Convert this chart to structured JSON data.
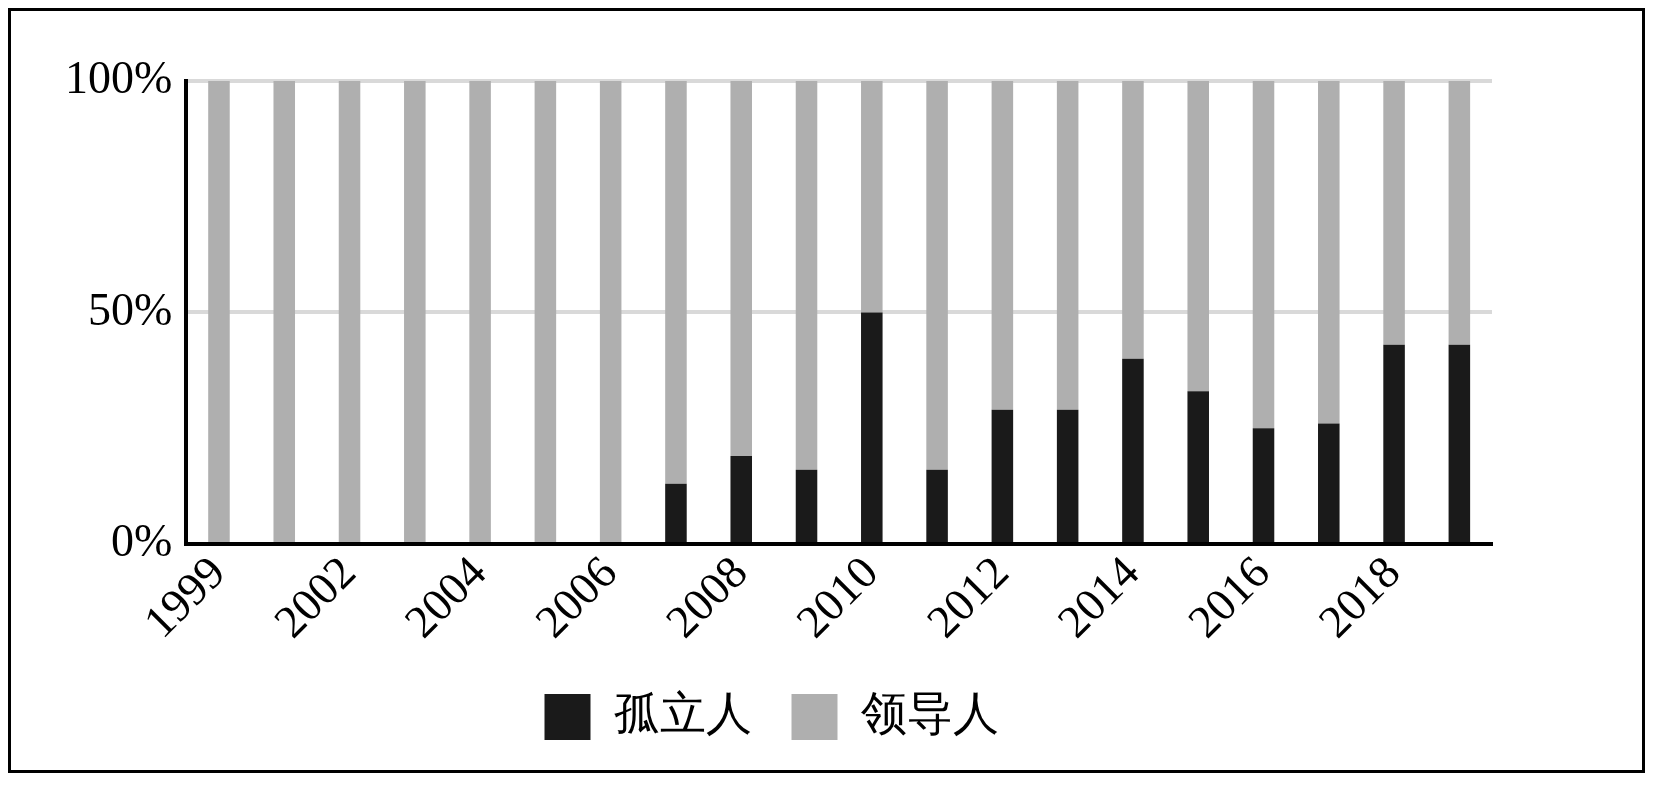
{
  "chart_data": {
    "type": "bar",
    "stacked": true,
    "categories": [
      "1999",
      null,
      "2002",
      null,
      "2004",
      null,
      "2006",
      null,
      "2008",
      null,
      "2010",
      null,
      "2012",
      null,
      "2014",
      null,
      "2016",
      null,
      "2018",
      null
    ],
    "series": [
      {
        "name": "孤立人",
        "color": "#1a1a1a",
        "values": [
          0,
          0,
          0,
          0,
          0,
          0,
          0,
          13,
          19,
          16,
          50,
          16,
          29,
          29,
          40,
          33,
          25,
          26,
          43,
          43
        ]
      },
      {
        "name": "领导人",
        "color": "#afafaf",
        "values": [
          100,
          100,
          100,
          100,
          100,
          100,
          100,
          87,
          81,
          84,
          50,
          84,
          71,
          71,
          60,
          67,
          75,
          74,
          57,
          57
        ]
      }
    ],
    "ylim": [
      0,
      100
    ],
    "yticks": [
      {
        "value": 0,
        "label": "0%"
      },
      {
        "value": 50,
        "label": "50%"
      },
      {
        "value": 100,
        "label": "100%"
      }
    ],
    "grid": "y",
    "legend": "bottom"
  }
}
